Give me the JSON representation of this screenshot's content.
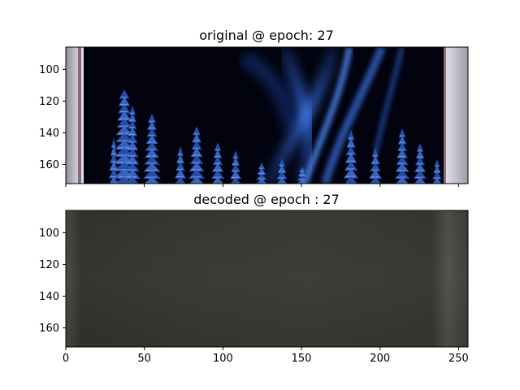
{
  "chart_data": [
    {
      "type": "image",
      "title": "original @ epoch: 27",
      "x_range": [
        0,
        256
      ],
      "y_range": [
        86,
        172
      ],
      "y_inverted": true,
      "x_ticks": [
        0,
        50,
        100,
        150,
        200,
        250
      ],
      "y_ticks": [
        100,
        120,
        140,
        160
      ],
      "x_tick_labels_visible": false,
      "content": "night scene with blue aurora streaks and snowy pine trees, grey side borders",
      "colors": {
        "sky": "#02030f",
        "aurora": "#2f63d6",
        "trees": "#2b55b8",
        "border": "#b9b7c4"
      }
    },
    {
      "type": "image",
      "title": "decoded @ epoch : 27",
      "x_range": [
        0,
        256
      ],
      "y_range": [
        86,
        172
      ],
      "y_inverted": true,
      "x_ticks": [
        0,
        50,
        100,
        150,
        200,
        250
      ],
      "y_ticks": [
        100,
        120,
        140,
        160
      ],
      "x_tick_labels_visible": true,
      "content": "uniform dark grey blurred reconstruction",
      "colors": {
        "fill": "#3d3b36",
        "edge": "#4d4b45"
      }
    }
  ]
}
